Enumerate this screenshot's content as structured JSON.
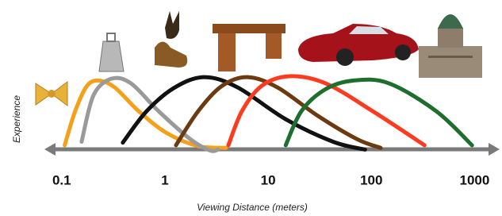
{
  "chart_data": {
    "type": "line",
    "xscale": "log",
    "x_label": "Viewing Distance (meters)",
    "y_label": "Experience",
    "xlim": [
      0.073,
      1600
    ],
    "ylim": [
      0,
      100
    ],
    "xticks": [
      0.1,
      1,
      10,
      100,
      1000
    ],
    "series": [
      {
        "color": "#f5a01a",
        "x": [
          0.107,
          0.135,
          0.176,
          0.23,
          0.328,
          0.557,
          1.04,
          2.1,
          3.91
        ],
        "values": [
          11,
          50,
          79,
          85,
          77,
          50,
          25,
          10,
          8
        ]
      },
      {
        "color": "#9a9a9a",
        "x": [
          0.156,
          0.203,
          0.3,
          0.467,
          0.868,
          1.76,
          2.74,
          3.28
        ],
        "values": [
          15,
          68,
          87,
          82,
          50,
          18,
          5,
          6
        ]
      },
      {
        "color": "#111111",
        "x": [
          0.391,
          0.665,
          1.24,
          2.42,
          5.1,
          14.7,
          42.6,
          86.9
        ],
        "values": [
          14,
          50,
          77,
          89,
          77,
          41,
          15,
          6
        ]
      },
      {
        "color": "#6b3a10",
        "x": [
          1.28,
          2.1,
          3.58,
          6.32,
          12.4,
          30.0,
          72.6,
          123
        ],
        "values": [
          11,
          50,
          79,
          89,
          77,
          45,
          18,
          8
        ]
      },
      {
        "color": "#ff3b1f",
        "x": [
          4.12,
          5.57,
          8.66,
          16.1,
          35.8,
          103,
          327
        ],
        "values": [
          11,
          50,
          79,
          90,
          82,
          50,
          11
        ]
      },
      {
        "color": "#1e6e2e",
        "x": [
          14.8,
          21.0,
          35.8,
          66.3,
          147,
          425,
          944
        ],
        "values": [
          11,
          50,
          75,
          85,
          82,
          50,
          11
        ]
      }
    ]
  }
}
